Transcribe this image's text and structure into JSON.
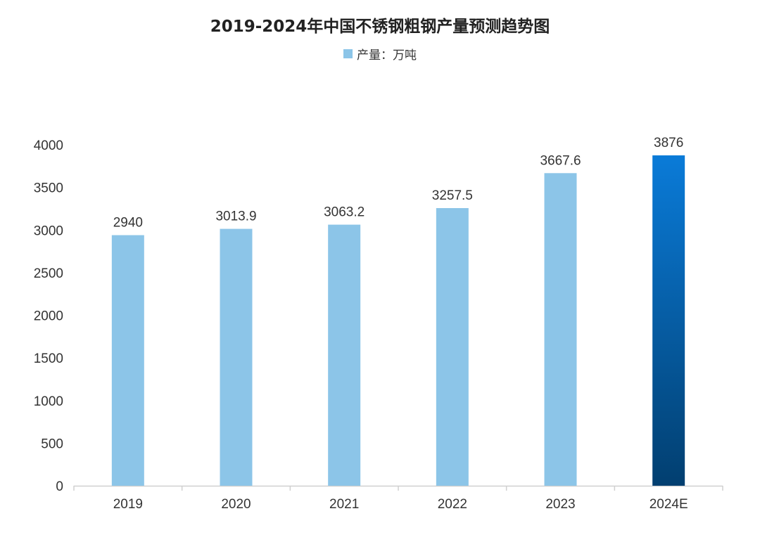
{
  "chart_data": {
    "type": "bar",
    "title": "2019-2024年中国不锈钢粗钢产量预测趋势图",
    "categories": [
      "2019",
      "2020",
      "2021",
      "2022",
      "2023",
      "2024E"
    ],
    "series": [
      {
        "name": "产量：万吨",
        "values": [
          2940,
          3013.9,
          3063.2,
          3257.5,
          3667.6,
          3876
        ]
      }
    ],
    "data_labels": [
      "2940",
      "3013.9",
      "3063.2",
      "3257.5",
      "3667.6",
      "3876"
    ],
    "xlabel": "",
    "ylabel": "",
    "ylim": [
      0,
      4000
    ],
    "yticks": [
      0,
      500,
      1000,
      1500,
      2000,
      2500,
      3000,
      3500,
      4000
    ],
    "grid": false,
    "legend_position": "top-center",
    "colors": {
      "bar": "#8cc5e8",
      "highlight_top": "#0a7bd8",
      "highlight_bottom": "#023f70",
      "axis": "#d0d0d0"
    },
    "highlight_category": "2024E"
  }
}
